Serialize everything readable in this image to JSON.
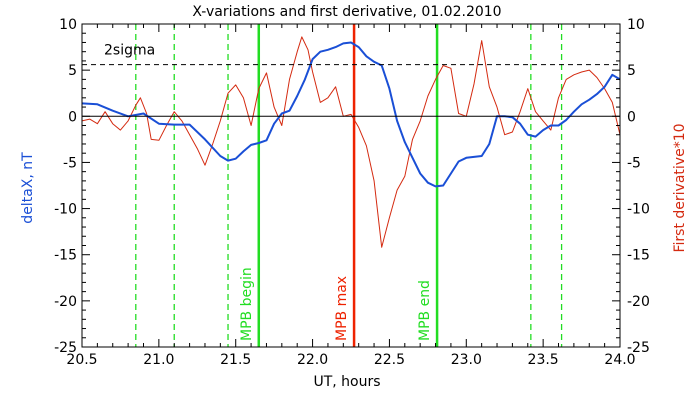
{
  "chart_data": {
    "type": "line",
    "title": "X-variations and first derivative, 01.02.2010",
    "xlabel": "UT, hours",
    "ylabel_left": "deltaX, nT",
    "ylabel_right": "First derivative*10",
    "xlim": [
      20.5,
      24.0
    ],
    "ylim": [
      -25,
      10
    ],
    "x_ticks": [
      20.5,
      21.0,
      21.5,
      22.0,
      22.5,
      23.0,
      23.5,
      24.0
    ],
    "x_tick_labels": [
      "20.5",
      "21.0",
      "21.5",
      "22.0",
      "22.5",
      "23.0",
      "23.5",
      "24.0"
    ],
    "y_ticks": [
      -25,
      -20,
      -15,
      -10,
      -5,
      0,
      5,
      10
    ],
    "y_tick_labels": [
      "-25",
      "-20",
      "-15",
      "-10",
      "-5",
      "0",
      "5",
      "10"
    ],
    "grid": false,
    "colors": {
      "deltaX": "#1a4fd6",
      "derivative": "#d42a10",
      "green": "#22dd22",
      "red": "#ee2200",
      "axis": "#000000"
    },
    "series": [
      {
        "key": "deltaX",
        "x": [
          20.5,
          20.6,
          20.7,
          20.8,
          20.9,
          21.0,
          21.1,
          21.2,
          21.3,
          21.4,
          21.45,
          21.5,
          21.55,
          21.6,
          21.65,
          21.7,
          21.75,
          21.8,
          21.85,
          21.9,
          21.95,
          22.0,
          22.05,
          22.1,
          22.15,
          22.2,
          22.25,
          22.3,
          22.35,
          22.4,
          22.45,
          22.5,
          22.55,
          22.6,
          22.65,
          22.7,
          22.75,
          22.8,
          22.85,
          22.9,
          22.95,
          23.0,
          23.05,
          23.1,
          23.15,
          23.2,
          23.25,
          23.3,
          23.35,
          23.4,
          23.45,
          23.5,
          23.55,
          23.6,
          23.65,
          23.7,
          23.75,
          23.8,
          23.85,
          23.9,
          23.95,
          24.0
        ],
        "y": [
          1.4,
          1.3,
          0.6,
          0.0,
          0.3,
          -0.8,
          -0.9,
          -0.9,
          -2.5,
          -4.3,
          -4.8,
          -4.6,
          -3.8,
          -3.1,
          -2.9,
          -2.6,
          -0.8,
          0.3,
          0.6,
          2.2,
          4.0,
          6.2,
          7.0,
          7.2,
          7.5,
          7.9,
          8.0,
          7.5,
          6.5,
          5.9,
          5.5,
          3.0,
          -0.5,
          -2.8,
          -4.5,
          -6.2,
          -7.2,
          -7.6,
          -7.5,
          -6.2,
          -4.9,
          -4.5,
          -4.4,
          -4.3,
          -3.0,
          0.0,
          0.0,
          -0.1,
          -0.8,
          -2.0,
          -2.2,
          -1.5,
          -1.0,
          -1.0,
          -0.4,
          0.5,
          1.3,
          1.8,
          2.4,
          3.2,
          4.5,
          4.0
        ]
      },
      {
        "key": "derivative",
        "x": [
          20.5,
          20.55,
          20.6,
          20.65,
          20.7,
          20.75,
          20.8,
          20.85,
          20.88,
          20.92,
          20.95,
          21.0,
          21.05,
          21.1,
          21.15,
          21.2,
          21.25,
          21.3,
          21.35,
          21.4,
          21.45,
          21.5,
          21.55,
          21.6,
          21.65,
          21.7,
          21.75,
          21.8,
          21.85,
          21.9,
          21.93,
          21.97,
          22.0,
          22.05,
          22.1,
          22.15,
          22.2,
          22.25,
          22.3,
          22.35,
          22.4,
          22.45,
          22.5,
          22.55,
          22.6,
          22.65,
          22.7,
          22.75,
          22.8,
          22.85,
          22.9,
          22.95,
          23.0,
          23.05,
          23.1,
          23.15,
          23.2,
          23.25,
          23.3,
          23.35,
          23.4,
          23.45,
          23.5,
          23.55,
          23.6,
          23.65,
          23.7,
          23.75,
          23.8,
          23.85,
          23.9,
          23.95,
          24.0
        ],
        "y": [
          -0.5,
          -0.3,
          -0.8,
          0.5,
          -0.8,
          -1.5,
          -0.5,
          1.2,
          2.0,
          0.3,
          -2.5,
          -2.6,
          -1.0,
          0.5,
          -0.5,
          -2.0,
          -3.5,
          -5.3,
          -3.0,
          -0.5,
          2.5,
          3.4,
          2.0,
          -1.0,
          3.0,
          4.7,
          1.0,
          -1.0,
          4.0,
          7.0,
          8.6,
          7.2,
          4.8,
          1.5,
          2.0,
          3.2,
          0.0,
          0.2,
          -1.2,
          -3.2,
          -7.0,
          -14.2,
          -11.0,
          -8.0,
          -6.5,
          -2.5,
          -0.5,
          2.2,
          4.0,
          5.5,
          5.2,
          0.3,
          0.0,
          3.5,
          8.2,
          3.2,
          1.0,
          -2.0,
          -1.7,
          0.5,
          3.0,
          0.5,
          -0.5,
          -1.5,
          2.0,
          4.0,
          4.5,
          4.8,
          5.0,
          4.2,
          3.0,
          1.5,
          -2.0
        ]
      }
    ],
    "threshold": {
      "label": "2sigma",
      "y": 5.6
    },
    "vlines": [
      {
        "x": 20.85,
        "style": "dashed",
        "color_key": "green"
      },
      {
        "x": 21.1,
        "style": "dashed",
        "color_key": "green"
      },
      {
        "x": 21.45,
        "style": "dashed",
        "color_key": "green"
      },
      {
        "x": 21.65,
        "style": "solid",
        "color_key": "green",
        "label": "MPB begin"
      },
      {
        "x": 22.27,
        "style": "solid",
        "color_key": "red",
        "label": "MPB max"
      },
      {
        "x": 22.81,
        "style": "solid",
        "color_key": "green",
        "label": "MPB end"
      },
      {
        "x": 23.42,
        "style": "dashed",
        "color_key": "green"
      },
      {
        "x": 23.62,
        "style": "dashed",
        "color_key": "green"
      }
    ]
  }
}
